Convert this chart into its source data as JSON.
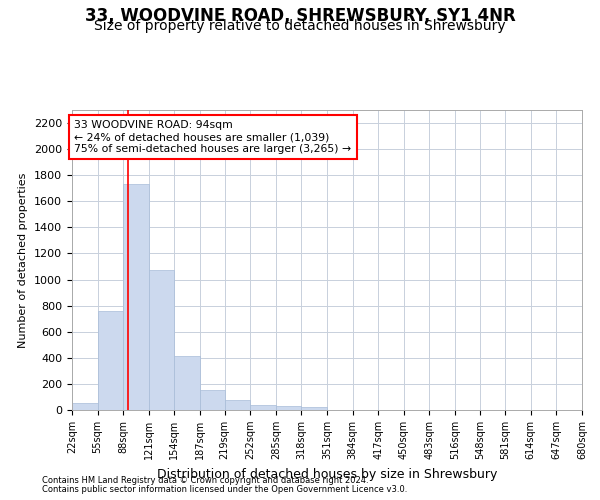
{
  "title": "33, WOODVINE ROAD, SHREWSBURY, SY1 4NR",
  "subtitle": "Size of property relative to detached houses in Shrewsbury",
  "xlabel": "Distribution of detached houses by size in Shrewsbury",
  "ylabel": "Number of detached properties",
  "footer_line1": "Contains HM Land Registry data © Crown copyright and database right 2024.",
  "footer_line2": "Contains public sector information licensed under the Open Government Licence v3.0.",
  "bar_color": "#ccd9ee",
  "bar_edge_color": "#a8bcd8",
  "grid_color": "#c8d0dc",
  "annotation_line1": "33 WOODVINE ROAD: 94sqm",
  "annotation_line2": "← 24% of detached houses are smaller (1,039)",
  "annotation_line3": "75% of semi-detached houses are larger (3,265) →",
  "annotation_box_color": "white",
  "annotation_box_edge": "red",
  "vline_x": 94,
  "vline_color": "red",
  "bin_edges": [
    22,
    55,
    88,
    121,
    154,
    187,
    219,
    252,
    285,
    318,
    351,
    384,
    417,
    450,
    483,
    516,
    548,
    581,
    614,
    647,
    680
  ],
  "bar_heights": [
    50,
    760,
    1730,
    1070,
    415,
    155,
    80,
    38,
    30,
    22,
    0,
    0,
    0,
    0,
    0,
    0,
    0,
    0,
    0,
    0
  ],
  "ylim": [
    0,
    2300
  ],
  "yticks": [
    0,
    200,
    400,
    600,
    800,
    1000,
    1200,
    1400,
    1600,
    1800,
    2000,
    2200
  ],
  "bg_color": "white",
  "title_fontsize": 12,
  "subtitle_fontsize": 10,
  "ylabel_fontsize": 8,
  "xlabel_fontsize": 9,
  "ytick_fontsize": 8,
  "xtick_fontsize": 7
}
